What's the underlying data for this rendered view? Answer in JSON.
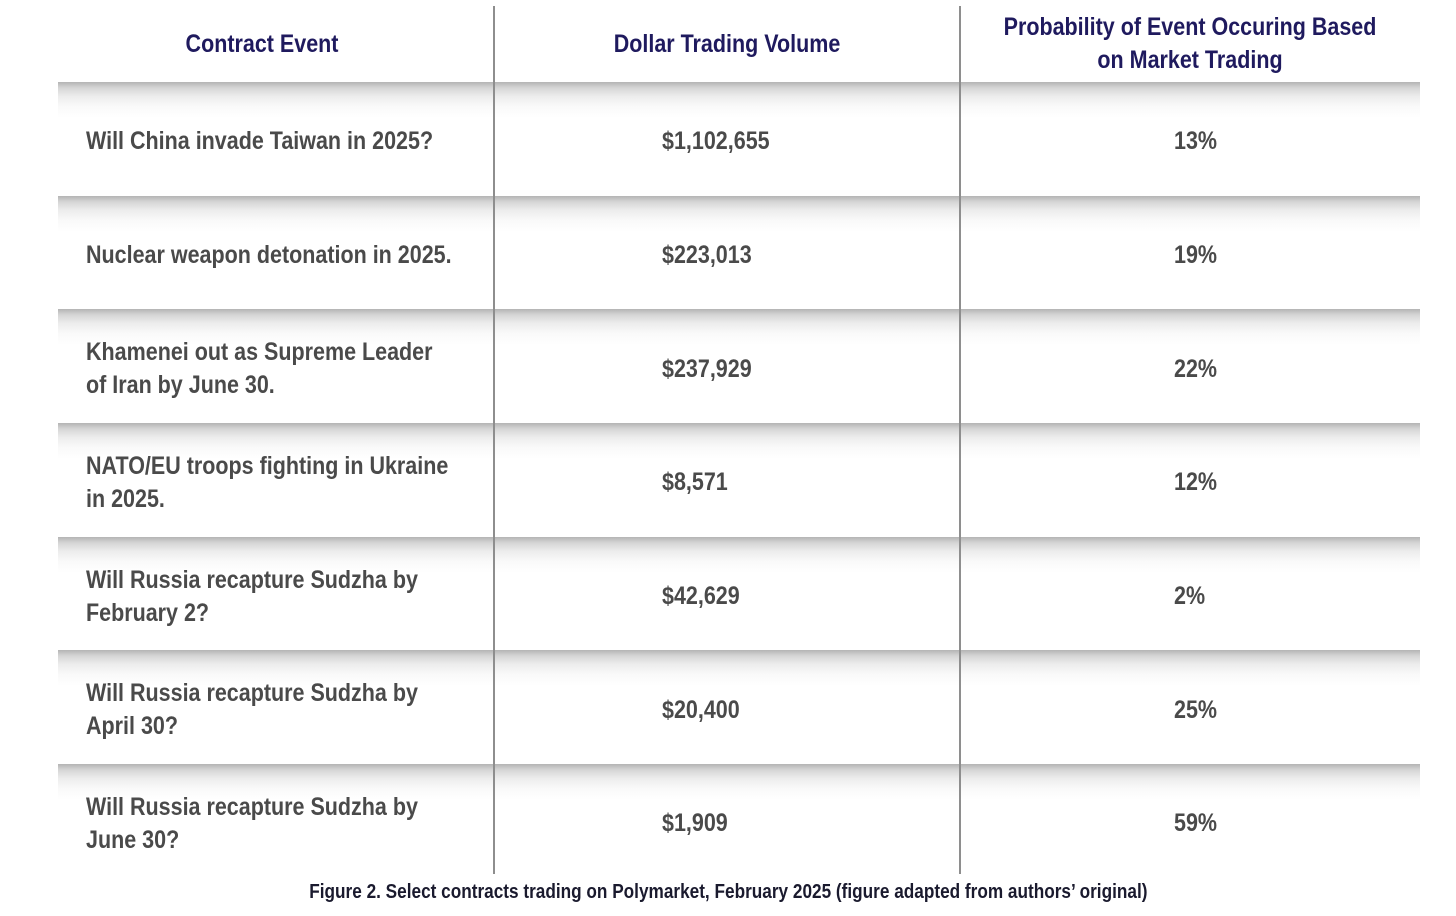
{
  "table": {
    "headers": [
      "Contract Event",
      "Dollar Trading Volume",
      "Probability of Event Occuring Based\non Market Trading"
    ],
    "rows": [
      {
        "event": "Will China invade Taiwan in 2025?",
        "volume": "$1,102,655",
        "probability": "13%"
      },
      {
        "event": "Nuclear weapon detonation in 2025.",
        "volume": "$223,013",
        "probability": "19%"
      },
      {
        "event": "Khamenei out as Supreme Leader\nof Iran by June 30.",
        "volume": "$237,929",
        "probability": "22%"
      },
      {
        "event": "NATO/EU troops fighting in Ukraine\nin 2025.",
        "volume": "$8,571",
        "probability": "12%"
      },
      {
        "event": "Will Russia recapture Sudzha by\nFebruary 2?",
        "volume": "$42,629",
        "probability": "2%"
      },
      {
        "event": "Will Russia recapture Sudzha by\nApril 30?",
        "volume": "$20,400",
        "probability": "25%"
      },
      {
        "event": "Will Russia recapture Sudzha by\nJune 30?",
        "volume": "$1,909",
        "probability": "59%"
      }
    ]
  },
  "caption": "Figure 2. Select contracts trading on Polymarket, February 2025 (figure adapted from authors’ original)",
  "colors": {
    "header_text": "#1f1a5e",
    "body_text": "#4a4a4a",
    "divider": "#8e8e8e"
  }
}
